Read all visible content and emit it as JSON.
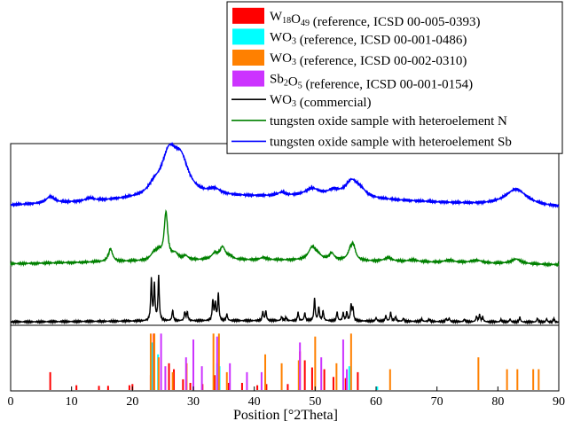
{
  "chart_data": {
    "type": "line",
    "xlabel": "Position [°2Theta]",
    "xlim": [
      0,
      90
    ],
    "x_ticks": [
      0,
      10,
      20,
      30,
      40,
      50,
      60,
      70,
      80,
      90
    ],
    "y_ticks_shown": false,
    "legend_position": "top-right",
    "legend": [
      {
        "formula": [
          [
            "W",
            false
          ],
          [
            "18",
            true
          ],
          [
            "O",
            false
          ],
          [
            "49",
            true
          ]
        ],
        "text": " (reference, ICSD 00-005-0393)",
        "kind": "patch",
        "color": "#ff0000"
      },
      {
        "formula": [
          [
            "WO",
            false
          ],
          [
            "3",
            true
          ]
        ],
        "text": " (reference, ICSD 00-001-0486)",
        "kind": "patch",
        "color": "#00ffff"
      },
      {
        "formula": [
          [
            "WO",
            false
          ],
          [
            "3",
            true
          ]
        ],
        "text": " (reference, ICSD 00-002-0310)",
        "kind": "patch",
        "color": "#ff8000"
      },
      {
        "formula": [
          [
            "Sb",
            false
          ],
          [
            "2",
            true
          ],
          [
            "O",
            false
          ],
          [
            "5",
            true
          ]
        ],
        "text": " (reference, ICSD 00-001-0154)",
        "kind": "patch",
        "color": "#cc33ff"
      },
      {
        "formula": [
          [
            "WO",
            false
          ],
          [
            "3",
            true
          ]
        ],
        "text": " (commercial)",
        "kind": "line",
        "color": "#000000"
      },
      {
        "formula": [],
        "text": "tungsten oxide sample with heteroelement N",
        "kind": "line",
        "color": "#008000"
      },
      {
        "formula": [],
        "text": "tungsten oxide sample with heteroelement Sb",
        "kind": "line",
        "color": "#0000ff"
      }
    ],
    "series": [
      {
        "name": "tungsten oxide sample with heteroelement Sb",
        "color": "#0000ff",
        "peaks": [
          [
            6.5,
            0.12,
            0.8
          ],
          [
            13,
            0.05,
            0.8
          ],
          [
            23.5,
            0.12,
            1.0
          ],
          [
            26.0,
            0.75,
            1.6
          ],
          [
            28.0,
            0.55,
            1.5
          ],
          [
            33.5,
            0.1,
            1.2
          ],
          [
            44.5,
            0.06,
            0.8
          ],
          [
            49.5,
            0.14,
            1.5
          ],
          [
            53.0,
            0.1,
            1.2
          ],
          [
            56.0,
            0.3,
            1.3
          ],
          [
            57.5,
            0.1,
            1.0
          ],
          [
            83,
            0.3,
            2.2
          ]
        ]
      },
      {
        "name": "tungsten oxide sample with heteroelement N",
        "color": "#008000",
        "peaks": [
          [
            16.4,
            0.26,
            0.4
          ],
          [
            23.5,
            0.12,
            0.6
          ],
          [
            24.3,
            0.15,
            0.6
          ],
          [
            25.5,
            0.95,
            0.35
          ],
          [
            27.0,
            0.12,
            0.6
          ],
          [
            28.7,
            0.08,
            0.5
          ],
          [
            33.5,
            0.12,
            0.6
          ],
          [
            34.8,
            0.25,
            0.55
          ],
          [
            36.0,
            0.06,
            0.5
          ],
          [
            41.5,
            0.05,
            0.6
          ],
          [
            49.5,
            0.26,
            0.7
          ],
          [
            50.5,
            0.08,
            0.6
          ],
          [
            52.7,
            0.14,
            0.5
          ],
          [
            55.8,
            0.2,
            0.5
          ],
          [
            56.3,
            0.24,
            0.4
          ],
          [
            62.0,
            0.07,
            0.8
          ],
          [
            66,
            0.04,
            1.0
          ],
          [
            72.0,
            0.05,
            1.0
          ],
          [
            76.5,
            0.06,
            1.2
          ],
          [
            83.0,
            0.1,
            1.0
          ]
        ]
      },
      {
        "name": "WO3 (commercial)",
        "color": "#000000",
        "peaks": [
          [
            23.1,
            0.84,
            0.12
          ],
          [
            23.6,
            0.74,
            0.12
          ],
          [
            24.3,
            0.91,
            0.12
          ],
          [
            26.6,
            0.22,
            0.12
          ],
          [
            28.6,
            0.18,
            0.12
          ],
          [
            29.0,
            0.18,
            0.12
          ],
          [
            33.2,
            0.42,
            0.12
          ],
          [
            33.6,
            0.35,
            0.12
          ],
          [
            34.1,
            0.55,
            0.12
          ],
          [
            35.5,
            0.13,
            0.12
          ],
          [
            41.4,
            0.18,
            0.12
          ],
          [
            41.9,
            0.2,
            0.12
          ],
          [
            44.5,
            0.08,
            0.12
          ],
          [
            45.2,
            0.07,
            0.12
          ],
          [
            47.2,
            0.17,
            0.12
          ],
          [
            48.3,
            0.16,
            0.12
          ],
          [
            49.9,
            0.46,
            0.12
          ],
          [
            50.6,
            0.28,
            0.12
          ],
          [
            51.3,
            0.2,
            0.12
          ],
          [
            53.6,
            0.18,
            0.12
          ],
          [
            54.6,
            0.16,
            0.12
          ],
          [
            55.2,
            0.18,
            0.12
          ],
          [
            55.9,
            0.32,
            0.12
          ],
          [
            56.2,
            0.26,
            0.12
          ],
          [
            60.0,
            0.07,
            0.12
          ],
          [
            61.6,
            0.11,
            0.12
          ],
          [
            62.4,
            0.18,
            0.12
          ],
          [
            63.2,
            0.09,
            0.12
          ],
          [
            64.5,
            0.06,
            0.12
          ],
          [
            67.5,
            0.05,
            0.12
          ],
          [
            68.7,
            0.05,
            0.12
          ],
          [
            71.5,
            0.06,
            0.12
          ],
          [
            72.0,
            0.07,
            0.12
          ],
          [
            74.5,
            0.05,
            0.12
          ],
          [
            76.5,
            0.11,
            0.12
          ],
          [
            77.0,
            0.14,
            0.12
          ],
          [
            77.5,
            0.1,
            0.12
          ],
          [
            80.5,
            0.05,
            0.12
          ],
          [
            82.0,
            0.06,
            0.12
          ],
          [
            83.6,
            0.1,
            0.12
          ],
          [
            86.5,
            0.08,
            0.12
          ],
          [
            88.0,
            0.07,
            0.12
          ],
          [
            89.2,
            0.07,
            0.12
          ]
        ]
      }
    ],
    "reference_sticks": [
      {
        "name": "W18O49 (reference, ICSD 00-005-0393)",
        "color": "#ff0000",
        "positions": [
          6.5,
          10.8,
          14.5,
          16.0,
          19.5,
          20.0,
          23.0,
          23.5,
          26.0,
          26.8,
          28.3,
          29.5,
          31.5,
          33.5,
          35.8,
          38.0,
          40.5,
          42.0,
          45.5,
          47.5,
          48.3,
          49.5,
          51.5,
          53.0,
          55.0,
          57.0
        ],
        "heights": [
          0.3,
          0.08,
          0.07,
          0.07,
          0.08,
          0.1,
          0.25,
          0.95,
          0.45,
          0.35,
          0.18,
          0.12,
          0.1,
          0.25,
          0.12,
          0.12,
          0.08,
          0.1,
          0.1,
          0.65,
          0.5,
          0.38,
          0.35,
          0.22,
          0.2,
          0.3
        ]
      },
      {
        "name": "WO3 (reference, ICSD 00-001-0486)",
        "color": "#00ffff",
        "positions": [
          23.2,
          24.2,
          33.9,
          34.3,
          41.8,
          55.6,
          60.2
        ],
        "heights": [
          0.8,
          0.6,
          0.45,
          0.4,
          0.25,
          0.4,
          0.06
        ]
      },
      {
        "name": "WO3 (reference, ICSD 00-002-0310)",
        "color": "#ff8000",
        "positions": [
          23.0,
          23.6,
          24.3,
          26.6,
          28.9,
          33.3,
          34.2,
          35.5,
          41.8,
          44.5,
          47.3,
          50.0,
          53.5,
          55.9,
          62.3,
          76.8,
          81.5,
          83.2,
          85.8,
          86.7
        ],
        "heights": [
          0.95,
          0.95,
          0.55,
          0.3,
          0.45,
          0.95,
          0.95,
          0.3,
          0.6,
          0.45,
          0.5,
          0.9,
          0.45,
          0.95,
          0.35,
          0.55,
          0.35,
          0.35,
          0.35,
          0.35
        ]
      },
      {
        "name": "Sb2O5 (reference, ICSD 00-001-0154)",
        "color": "#cc33ff",
        "positions": [
          24.7,
          25.4,
          28.8,
          30.0,
          31.4,
          33.9,
          36.0,
          38.8,
          41.2,
          47.5,
          51.0,
          54.6,
          55.2
        ],
        "heights": [
          0.95,
          0.4,
          0.55,
          0.85,
          0.4,
          0.9,
          0.45,
          0.3,
          0.3,
          0.8,
          0.55,
          0.85,
          0.35
        ]
      }
    ]
  }
}
